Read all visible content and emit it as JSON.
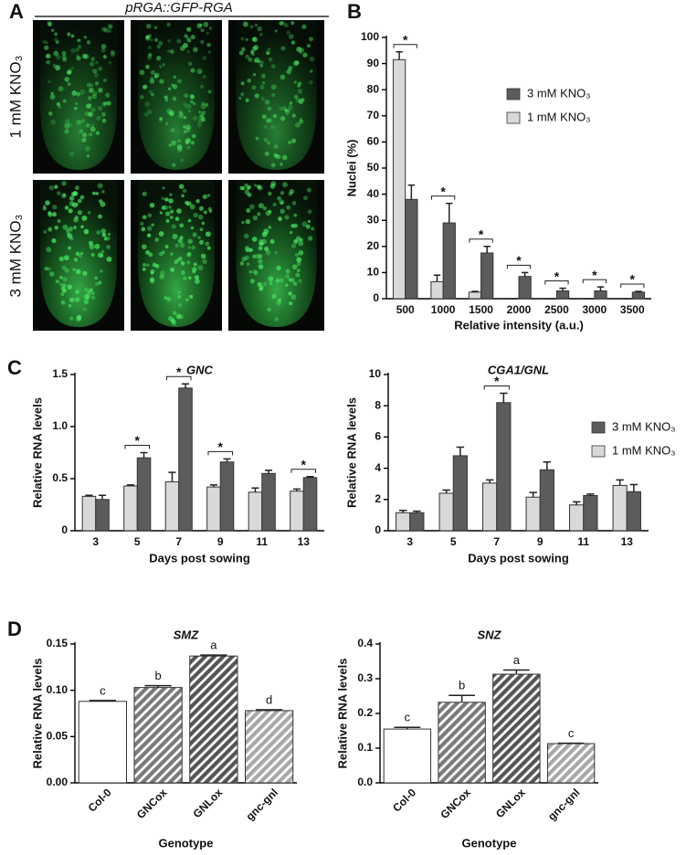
{
  "panel_labels": [
    "A",
    "B",
    "C",
    "D"
  ],
  "panel_a": {
    "title": "pRGA::GFP-RGA",
    "row_labels": [
      "1 mM KNO₃",
      "3 mM KNO₃"
    ]
  },
  "chart_data": [
    {
      "type": "bar",
      "xlabel": "Relative intensity (a.u.)",
      "ylabel": "Nuclei (%)",
      "categories": [
        "500",
        "1000",
        "1500",
        "2000",
        "2500",
        "3000",
        "3500"
      ],
      "series": [
        {
          "name": "1 mM KNO₃",
          "color": "#d9d9d9",
          "values": [
            91.5,
            6.5,
            2.5,
            0,
            0,
            0,
            0
          ],
          "errors": [
            3,
            2.5,
            0.3,
            0,
            0,
            0,
            0
          ]
        },
        {
          "name": "3 mM KNO₃",
          "color": "#5c5c5c",
          "values": [
            38,
            29,
            17.5,
            8.5,
            3,
            3,
            2.5
          ],
          "errors": [
            5.5,
            7.5,
            2.5,
            1.5,
            1,
            1.5,
            0.3
          ]
        }
      ],
      "ylim": [
        0,
        100
      ],
      "yticks": [
        0,
        10,
        20,
        30,
        40,
        50,
        60,
        70,
        80,
        90,
        100
      ],
      "annotations": [
        "*",
        "*",
        "*",
        "*",
        "*",
        "*",
        "*"
      ],
      "legend": "upper right"
    },
    {
      "type": "bar",
      "title": "GNC",
      "xlabel": "Days post sowing",
      "ylabel": "Relative RNA levels",
      "categories": [
        "3",
        "5",
        "7",
        "9",
        "11",
        "13"
      ],
      "series": [
        {
          "color": "#d9d9d9",
          "values": [
            0.33,
            0.43,
            0.47,
            0.42,
            0.37,
            0.38
          ],
          "errors": [
            0.01,
            0.01,
            0.09,
            0.02,
            0.04,
            0.02
          ]
        },
        {
          "color": "#5c5c5c",
          "values": [
            0.3,
            0.7,
            1.37,
            0.66,
            0.55,
            0.51
          ],
          "errors": [
            0.04,
            0.05,
            0.04,
            0.03,
            0.03,
            0.01
          ]
        }
      ],
      "ylim": [
        0,
        1.5
      ],
      "yticks": [
        0,
        0.5,
        {
          "value": 1,
          "label": "1.0"
        },
        1.5
      ],
      "annotations": [
        null,
        "*",
        "*",
        "*",
        null,
        "*"
      ]
    },
    {
      "type": "bar",
      "title": "CGA1/GNL",
      "xlabel": "Days post sowing",
      "ylabel": "Relative RNA levels",
      "categories": [
        "3",
        "5",
        "7",
        "9",
        "11",
        "13"
      ],
      "series": [
        {
          "name": "1 mM KNO₃",
          "color": "#d9d9d9",
          "values": [
            1.15,
            2.4,
            3.05,
            2.15,
            1.65,
            2.9
          ],
          "errors": [
            0.15,
            0.2,
            0.2,
            0.3,
            0.2,
            0.35
          ]
        },
        {
          "name": "3 mM KNO₃",
          "color": "#5c5c5c",
          "values": [
            1.15,
            4.8,
            8.2,
            3.9,
            2.25,
            2.5
          ],
          "errors": [
            0.1,
            0.55,
            0.6,
            0.5,
            0.1,
            0.45
          ]
        }
      ],
      "ylim": [
        0,
        10
      ],
      "yticks": [
        0,
        2,
        4,
        6,
        8,
        10
      ],
      "annotations": [
        null,
        null,
        "*",
        null,
        null,
        null
      ],
      "legend": "upper right"
    },
    {
      "type": "bar",
      "title": "SMZ",
      "xlabel": "Genotype",
      "ylabel": "Relative RNA levels",
      "categories": [
        "Col-0",
        "GNCox",
        "GNLox",
        "gnc-gnl"
      ],
      "series": [
        {
          "colors": [
            "#ffffff",
            "#7a7a7a",
            "#555555",
            "#a8a8a8"
          ],
          "hatched": [
            false,
            true,
            true,
            true
          ],
          "values": [
            0.088,
            0.103,
            0.137,
            0.078
          ],
          "errors": [
            0.001,
            0.002,
            0.001,
            0.001
          ]
        }
      ],
      "ylim": [
        0,
        0.15
      ],
      "yticks": [
        {
          "value": 0,
          "label": "0.00"
        },
        {
          "value": 0.05,
          "label": "0.05"
        },
        {
          "value": 0.1,
          "label": "0.10"
        },
        {
          "value": 0.15,
          "label": "0.15"
        }
      ],
      "annotations": [
        "c",
        "b",
        "a",
        "d"
      ]
    },
    {
      "type": "bar",
      "title": "SNZ",
      "xlabel": "Genotype",
      "ylabel": "Relative RNA levels",
      "categories": [
        "Col-0",
        "GNCox",
        "GNLox",
        "gnc-gnl"
      ],
      "series": [
        {
          "colors": [
            "#ffffff",
            "#7a7a7a",
            "#555555",
            "#a8a8a8"
          ],
          "hatched": [
            false,
            true,
            true,
            true
          ],
          "values": [
            0.155,
            0.232,
            0.313,
            0.113
          ],
          "errors": [
            0.005,
            0.02,
            0.012,
            0.001
          ]
        }
      ],
      "ylim": [
        0,
        0.4
      ],
      "yticks": [
        {
          "value": 0,
          "label": "0.0"
        },
        0.1,
        0.2,
        0.3,
        0.4
      ],
      "annotations": [
        "c",
        "b",
        "a",
        "c"
      ]
    }
  ]
}
